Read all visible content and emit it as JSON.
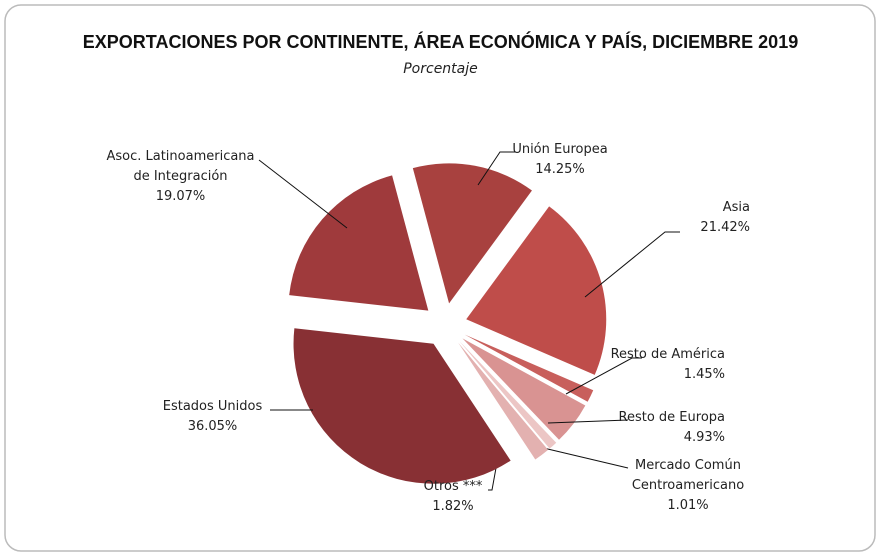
{
  "chart_data": {
    "type": "pie",
    "title": "EXPORTACIONES POR CONTINENTE, ÁREA ECONÓMICA Y PAÍS, DICIEMBRE 2019",
    "subtitle": "Porcentaje",
    "categories": [
      "Unión Europea",
      "Asia",
      "Resto de América",
      "Resto de Europa",
      "Mercado Común Centroamericano",
      "Otros ***",
      "Estados Unidos",
      "Asoc. Latinoamericana de Integración"
    ],
    "values": [
      14.25,
      21.42,
      1.45,
      4.93,
      1.01,
      1.82,
      36.05,
      19.07
    ],
    "value_labels": [
      "14.25%",
      "21.42%",
      "1.45%",
      "4.93%",
      "1.01%",
      "1.82%",
      "36.05%",
      "19.07%"
    ],
    "colors": [
      "#a8413f",
      "#bf4d4a",
      "#c85f5c",
      "#d99392",
      "#ecc6c5",
      "#e3b1b0",
      "#883034",
      "#9f3a3c"
    ]
  }
}
